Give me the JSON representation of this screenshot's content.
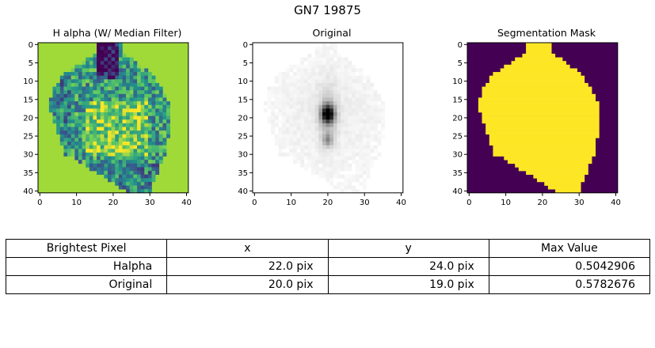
{
  "suptitle": "GN7 19875",
  "chart_data": [
    {
      "type": "heatmap",
      "title": "H alpha (W/ Median Filter)",
      "colormap": "viridis",
      "x_ticks": [
        0,
        10,
        20,
        30,
        40
      ],
      "y_ticks": [
        0,
        5,
        10,
        15,
        20,
        25,
        30,
        35,
        40
      ],
      "xlim": [
        0,
        40
      ],
      "ylim": [
        40,
        0
      ],
      "background_color": "#a0da39",
      "grid": false
    },
    {
      "type": "heatmap",
      "title": "Original",
      "colormap": "gray_r",
      "x_ticks": [
        0,
        10,
        20,
        30,
        40
      ],
      "y_ticks": [
        0,
        5,
        10,
        15,
        20,
        25,
        30,
        35,
        40
      ],
      "xlim": [
        0,
        40
      ],
      "ylim": [
        40,
        0
      ],
      "peak": {
        "x": 20,
        "y": 19
      },
      "grid": false
    },
    {
      "type": "heatmap",
      "title": "Segmentation Mask",
      "colormap": "viridis",
      "x_ticks": [
        0,
        10,
        20,
        30,
        40
      ],
      "y_ticks": [
        0,
        5,
        10,
        15,
        20,
        25,
        30,
        35,
        40
      ],
      "xlim": [
        0,
        40
      ],
      "ylim": [
        40,
        0
      ],
      "colors": {
        "inside": "#fde725",
        "outside": "#440154"
      },
      "grid": false
    }
  ],
  "table": {
    "headers": [
      "Brightest Pixel",
      "x",
      "y",
      "Max Value"
    ],
    "rows": [
      [
        "Halpha",
        "22.0 pix",
        "24.0 pix",
        "0.5042906"
      ],
      [
        "Original",
        "20.0 pix",
        "19.0 pix",
        "0.5782676"
      ]
    ]
  }
}
